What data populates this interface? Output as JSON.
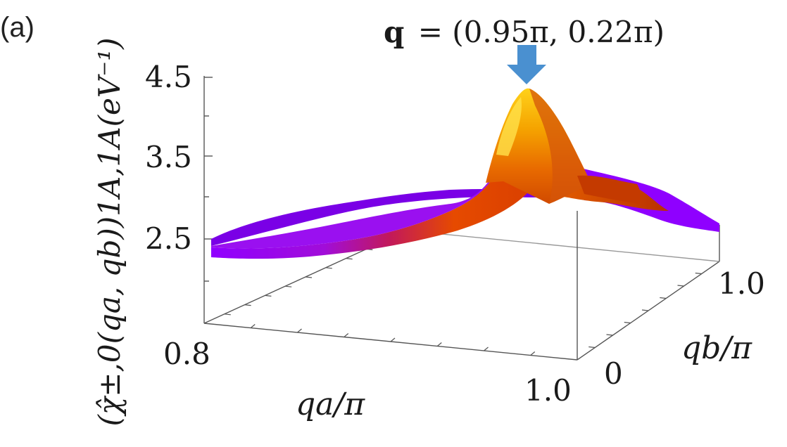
{
  "panel_label": "(a)",
  "annotation": {
    "text": "q = (0.95π, 0.22π)",
    "vector": "q",
    "value": "= (0.95π, 0.22π)",
    "arrow_color": "#4a90d0"
  },
  "chart_data": {
    "type": "surface",
    "title": "",
    "zlabel": "(χ̂±,0(qa, qb))1A,1A(eV⁻¹)",
    "xlabel": "qa/π",
    "ylabel": "qb/π",
    "z_tick_labels": [
      "2.5",
      "3.5",
      "4.5"
    ],
    "x_tick_labels": [
      "0.8",
      "1.0"
    ],
    "y_tick_labels": [
      "0",
      "1.0"
    ],
    "x_range": [
      0.8,
      1.0
    ],
    "y_range": [
      0,
      1.0
    ],
    "z_range": [
      1.5,
      4.5
    ],
    "peak": {
      "qa": 0.95,
      "qb": 0.22,
      "value": 4.35
    },
    "colormap": [
      "#8f00ff",
      "#c2185b",
      "#e64a00",
      "#f5a300",
      "#ffd21a"
    ],
    "surface_samples": {
      "qa": [
        0.8,
        0.85,
        0.9,
        0.95,
        1.0
      ],
      "qb": [
        0.0,
        0.22,
        0.5,
        1.0
      ],
      "z": [
        [
          2.6,
          2.65,
          2.75,
          2.85
        ],
        [
          2.65,
          2.75,
          2.8,
          2.9
        ],
        [
          2.8,
          3.1,
          2.9,
          2.95
        ],
        [
          3.3,
          4.35,
          3.1,
          3.0
        ],
        [
          3.0,
          3.2,
          3.1,
          3.0
        ]
      ]
    }
  }
}
